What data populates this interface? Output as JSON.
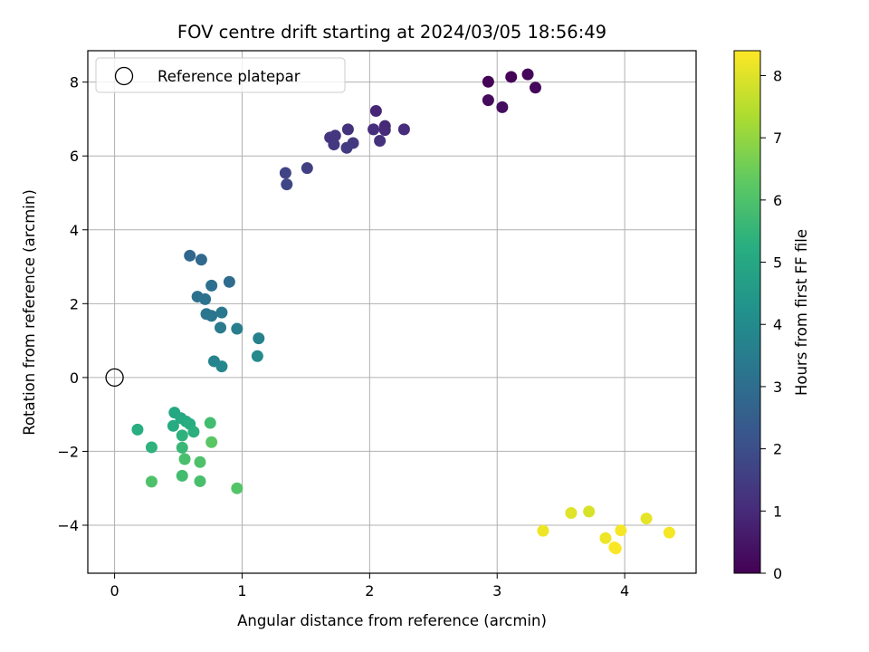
{
  "chart_data": {
    "type": "scatter",
    "title": "FOV centre drift starting at 2024/03/05 18:56:49",
    "xlabel": "Angular distance from reference (arcmin)",
    "ylabel": "Rotation from reference (arcmin)",
    "xlim": [
      -0.21,
      4.56
    ],
    "ylim": [
      -5.3,
      8.85
    ],
    "xticks": [
      0,
      1,
      2,
      3,
      4
    ],
    "yticks": [
      -4,
      -2,
      0,
      2,
      4,
      6,
      8
    ],
    "grid": true,
    "legend": {
      "position": "top-left",
      "entries": [
        "Reference platepar"
      ]
    },
    "reference_point": {
      "x": 0,
      "y": 0
    },
    "colorbar": {
      "label": "Hours from first FF file",
      "range": [
        0,
        8.4
      ],
      "ticks": [
        0,
        1,
        2,
        3,
        4,
        5,
        6,
        7,
        8
      ],
      "colormap": "viridis"
    },
    "points": [
      {
        "x": 2.93,
        "y": 8.01,
        "c": 0.05
      },
      {
        "x": 3.11,
        "y": 8.14,
        "c": 0.1
      },
      {
        "x": 3.24,
        "y": 8.21,
        "c": 0.15
      },
      {
        "x": 3.3,
        "y": 7.85,
        "c": 0.2
      },
      {
        "x": 2.93,
        "y": 7.51,
        "c": 0.25
      },
      {
        "x": 3.04,
        "y": 7.32,
        "c": 0.3
      },
      {
        "x": 2.05,
        "y": 7.22,
        "c": 0.9
      },
      {
        "x": 2.12,
        "y": 6.81,
        "c": 0.95
      },
      {
        "x": 2.12,
        "y": 6.7,
        "c": 1.0
      },
      {
        "x": 2.27,
        "y": 6.72,
        "c": 1.05
      },
      {
        "x": 2.03,
        "y": 6.72,
        "c": 1.1
      },
      {
        "x": 2.08,
        "y": 6.41,
        "c": 1.15
      },
      {
        "x": 1.83,
        "y": 6.72,
        "c": 1.2
      },
      {
        "x": 1.69,
        "y": 6.5,
        "c": 1.25
      },
      {
        "x": 1.73,
        "y": 6.55,
        "c": 1.3
      },
      {
        "x": 1.72,
        "y": 6.31,
        "c": 1.35
      },
      {
        "x": 1.87,
        "y": 6.35,
        "c": 1.4
      },
      {
        "x": 1.82,
        "y": 6.22,
        "c": 1.45
      },
      {
        "x": 1.51,
        "y": 5.67,
        "c": 1.6
      },
      {
        "x": 1.34,
        "y": 5.54,
        "c": 1.7
      },
      {
        "x": 1.35,
        "y": 5.23,
        "c": 1.75
      },
      {
        "x": 0.59,
        "y": 3.3,
        "c": 2.8
      },
      {
        "x": 0.68,
        "y": 3.19,
        "c": 2.85
      },
      {
        "x": 0.9,
        "y": 2.59,
        "c": 2.95
      },
      {
        "x": 0.76,
        "y": 2.49,
        "c": 3.05
      },
      {
        "x": 0.65,
        "y": 2.19,
        "c": 3.1
      },
      {
        "x": 0.71,
        "y": 2.12,
        "c": 3.15
      },
      {
        "x": 0.72,
        "y": 1.72,
        "c": 3.25
      },
      {
        "x": 0.76,
        "y": 1.67,
        "c": 3.3
      },
      {
        "x": 0.84,
        "y": 1.76,
        "c": 3.35
      },
      {
        "x": 0.83,
        "y": 1.35,
        "c": 3.45
      },
      {
        "x": 0.96,
        "y": 1.32,
        "c": 3.55
      },
      {
        "x": 1.13,
        "y": 1.06,
        "c": 3.65
      },
      {
        "x": 0.78,
        "y": 0.44,
        "c": 3.75
      },
      {
        "x": 0.84,
        "y": 0.3,
        "c": 3.85
      },
      {
        "x": 1.12,
        "y": 0.58,
        "c": 3.95
      },
      {
        "x": 0.47,
        "y": -0.95,
        "c": 5.0
      },
      {
        "x": 0.52,
        "y": -1.1,
        "c": 5.05
      },
      {
        "x": 0.56,
        "y": -1.19,
        "c": 5.1
      },
      {
        "x": 0.46,
        "y": -1.31,
        "c": 5.15
      },
      {
        "x": 0.59,
        "y": -1.26,
        "c": 5.2
      },
      {
        "x": 0.18,
        "y": -1.41,
        "c": 5.25
      },
      {
        "x": 0.62,
        "y": -1.47,
        "c": 5.3
      },
      {
        "x": 0.53,
        "y": -1.57,
        "c": 5.35
      },
      {
        "x": 0.75,
        "y": -1.23,
        "c": 5.8
      },
      {
        "x": 0.29,
        "y": -1.89,
        "c": 5.4
      },
      {
        "x": 0.53,
        "y": -1.9,
        "c": 5.6
      },
      {
        "x": 0.76,
        "y": -1.75,
        "c": 6.2
      },
      {
        "x": 0.55,
        "y": -2.21,
        "c": 5.9
      },
      {
        "x": 0.67,
        "y": -2.29,
        "c": 6.0
      },
      {
        "x": 0.53,
        "y": -2.66,
        "c": 5.8
      },
      {
        "x": 0.29,
        "y": -2.82,
        "c": 6.0
      },
      {
        "x": 0.67,
        "y": -2.81,
        "c": 5.9
      },
      {
        "x": 0.96,
        "y": -3.0,
        "c": 6.1
      },
      {
        "x": 3.58,
        "y": -3.67,
        "c": 8.0
      },
      {
        "x": 3.72,
        "y": -3.63,
        "c": 7.9
      },
      {
        "x": 4.17,
        "y": -3.82,
        "c": 8.1
      },
      {
        "x": 3.36,
        "y": -4.15,
        "c": 8.2
      },
      {
        "x": 3.97,
        "y": -4.14,
        "c": 8.3
      },
      {
        "x": 4.35,
        "y": -4.2,
        "c": 8.3
      },
      {
        "x": 3.85,
        "y": -4.35,
        "c": 8.2
      },
      {
        "x": 3.92,
        "y": -4.6,
        "c": 8.4
      },
      {
        "x": 3.93,
        "y": -4.63,
        "c": 8.35
      }
    ]
  }
}
